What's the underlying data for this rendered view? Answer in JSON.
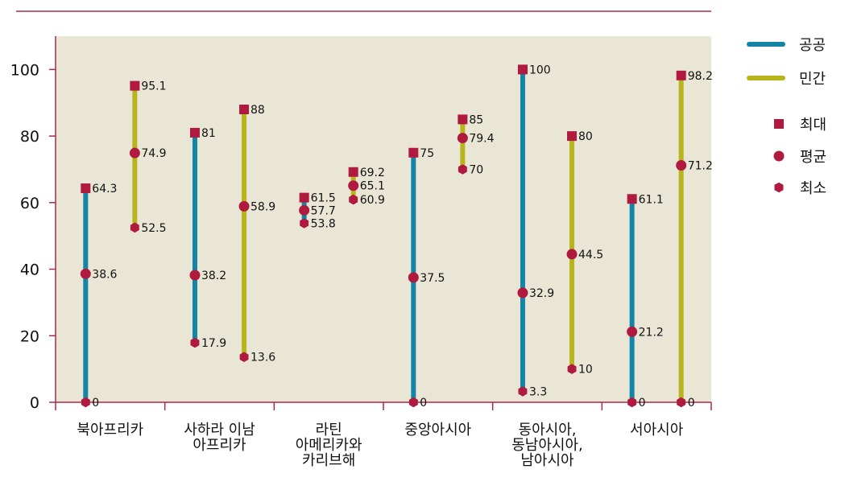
{
  "chart_data": {
    "type": "range",
    "categories": [
      [
        "북아프리카"
      ],
      [
        "사하라 이남",
        "아프리카"
      ],
      [
        "라틴",
        "아메리카와",
        "카리브해"
      ],
      [
        "중앙아시아"
      ],
      [
        "동아시아,",
        "동남아시아,",
        "남아시아"
      ],
      [
        "서아시아"
      ]
    ],
    "ylim": [
      0,
      110
    ],
    "yticks": [
      0,
      20,
      40,
      60,
      80,
      100
    ],
    "grid": false,
    "legend_position": "right",
    "series": [
      {
        "name": "공공",
        "color": "#1585a6",
        "max": [
          64.3,
          81,
          61.5,
          75,
          100,
          61.1
        ],
        "avg": [
          38.6,
          38.2,
          57.7,
          37.5,
          32.9,
          21.2
        ],
        "min": [
          0,
          17.9,
          53.8,
          0,
          3.3,
          0
        ]
      },
      {
        "name": "민간",
        "color": "#b8b41c",
        "max": [
          95.1,
          88,
          69.2,
          85,
          80,
          98.2
        ],
        "avg": [
          74.9,
          58.9,
          65.1,
          79.4,
          44.5,
          71.2
        ],
        "min": [
          52.5,
          13.6,
          60.9,
          70,
          10,
          0
        ]
      }
    ],
    "markers": {
      "max": "최대",
      "avg": "평균",
      "min": "최소"
    },
    "colors": {
      "plot_background": "#e9e6d6",
      "marker": "#b01a3e",
      "axis": "#a8294a"
    }
  }
}
